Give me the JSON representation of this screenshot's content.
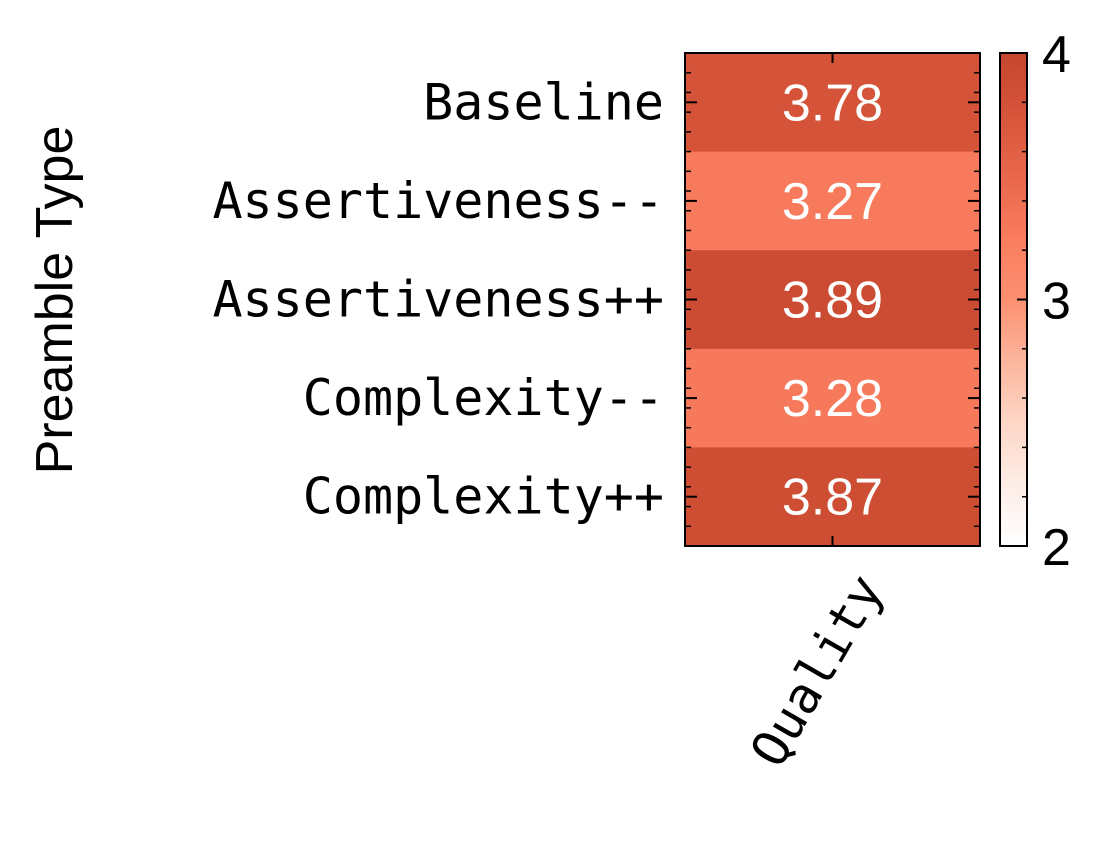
{
  "chart_data": {
    "type": "heatmap",
    "rows": [
      "Baseline",
      "Assertiveness--",
      "Assertiveness++",
      "Complexity--",
      "Complexity++"
    ],
    "columns": [
      "Quality"
    ],
    "values": [
      [
        3.78
      ],
      [
        3.27
      ],
      [
        3.89
      ],
      [
        3.28
      ],
      [
        3.87
      ]
    ],
    "cell_labels": [
      "3.78",
      "3.27",
      "3.89",
      "3.28",
      "3.87"
    ],
    "ylabel": "Preamble Type",
    "xlabel": "",
    "colorbar": {
      "min": 2,
      "max": 4,
      "ticks": [
        2,
        3,
        4
      ],
      "tick_labels": [
        "2",
        "3",
        "4"
      ],
      "colormap": "Reds"
    },
    "colors": {
      "low": "#ffffff",
      "high": "#c94a30"
    }
  }
}
